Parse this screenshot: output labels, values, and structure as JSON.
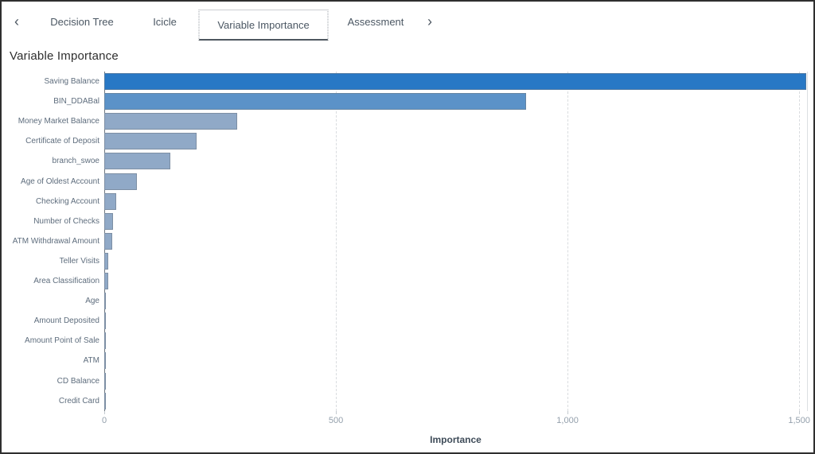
{
  "page_title": "Variable Importance",
  "tab_bar": {
    "chevron_left": "‹",
    "chevron_right": "›",
    "tabs": [
      {
        "label": "Decision Tree",
        "selected": false
      },
      {
        "label": "Icicle",
        "selected": false
      },
      {
        "label": "Variable Importance",
        "selected": true
      },
      {
        "label": "Assessment",
        "selected": false
      }
    ]
  },
  "chart_data": {
    "type": "bar",
    "orientation": "horizontal",
    "title": "Variable Importance",
    "xlabel": "Importance",
    "ylabel": "",
    "xlim": [
      0,
      1517
    ],
    "xticks": [
      0,
      500,
      1000,
      1500
    ],
    "xtick_labels": [
      "0",
      "500",
      "1,000",
      "1,500"
    ],
    "grid": "vertical-dashed",
    "legend": "none",
    "categories": [
      "Saving Balance",
      "BIN_DDABal",
      "Money Market Balance",
      "Certificate of Deposit",
      "branch_swoe",
      "Age of Oldest Account",
      "Checking Account",
      "Number of Checks",
      "ATM Withdrawal Amount",
      "Teller Visits",
      "Area Classification",
      "Age",
      "Amount Deposited",
      "Amount Point of Sale",
      "ATM",
      "CD Balance",
      "Credit Card"
    ],
    "values": [
      1515,
      910,
      287,
      199,
      143,
      70,
      26,
      19,
      17,
      9,
      8,
      2,
      2,
      1,
      1,
      1,
      1
    ],
    "bar_colors": [
      "#2878C5",
      "#5B92C8",
      "#90A9C7",
      "#90A9C7",
      "#90A9C7",
      "#90A9C7",
      "#90A9C7",
      "#90A9C7",
      "#90A9C7",
      "#90A9C7",
      "#90A9C7",
      "#90A9C7",
      "#90A9C7",
      "#90A9C7",
      "#90A9C7",
      "#90A9C7",
      "#90A9C7"
    ],
    "colors": {
      "highest_importance": "#2878C5",
      "second_importance": "#5B92C8",
      "default_bar": "#90A9C7",
      "gridline": "#d9dcdf",
      "axis_line": "#6e7780"
    }
  }
}
